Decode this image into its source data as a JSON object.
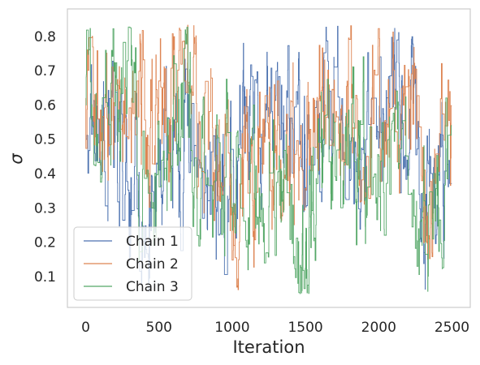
{
  "chart_data": {
    "type": "line",
    "xlabel": "Iteration",
    "ylabel": "σ",
    "xlim": [
      -125,
      2625
    ],
    "ylim": [
      0.01,
      0.88
    ],
    "xticks": [
      0,
      500,
      1000,
      1500,
      2000,
      2500
    ],
    "yticks": [
      0.1,
      0.2,
      0.3,
      0.4,
      0.5,
      0.6,
      0.7,
      0.8
    ],
    "grid": false,
    "legend_position": "lower-left",
    "x": {
      "start": 0,
      "end": 2499,
      "count": 2500,
      "step": 1
    },
    "series": [
      {
        "name": "Chain 1",
        "color": "#4c72b0",
        "seed": 11,
        "keypoints": [
          [
            0,
            0.5
          ],
          [
            150,
            0.58
          ],
          [
            330,
            0.4
          ],
          [
            370,
            0.26
          ],
          [
            600,
            0.55
          ],
          [
            900,
            0.3
          ],
          [
            1000,
            0.55
          ],
          [
            1150,
            0.5
          ],
          [
            1300,
            0.6
          ],
          [
            1500,
            0.5
          ],
          [
            1650,
            0.62
          ],
          [
            1800,
            0.45
          ],
          [
            2000,
            0.55
          ],
          [
            2200,
            0.5
          ],
          [
            2330,
            0.28
          ],
          [
            2499,
            0.42
          ]
        ]
      },
      {
        "name": "Chain 2",
        "color": "#dd8452",
        "seed": 23,
        "keypoints": [
          [
            0,
            0.62
          ],
          [
            200,
            0.55
          ],
          [
            500,
            0.6
          ],
          [
            800,
            0.55
          ],
          [
            1050,
            0.22
          ],
          [
            1200,
            0.55
          ],
          [
            1400,
            0.45
          ],
          [
            1560,
            0.58
          ],
          [
            1800,
            0.55
          ],
          [
            2100,
            0.58
          ],
          [
            2200,
            0.55
          ],
          [
            2300,
            0.4
          ],
          [
            2400,
            0.45
          ],
          [
            2499,
            0.48
          ]
        ]
      },
      {
        "name": "Chain 3",
        "color": "#55a868",
        "seed": 37,
        "keypoints": [
          [
            0,
            0.6
          ],
          [
            160,
            0.7
          ],
          [
            400,
            0.45
          ],
          [
            700,
            0.5
          ],
          [
            900,
            0.4
          ],
          [
            1200,
            0.4
          ],
          [
            1340,
            0.35
          ],
          [
            1450,
            0.1
          ],
          [
            1560,
            0.4
          ],
          [
            1700,
            0.42
          ],
          [
            2000,
            0.42
          ],
          [
            2300,
            0.35
          ],
          [
            2499,
            0.4
          ]
        ]
      }
    ]
  }
}
